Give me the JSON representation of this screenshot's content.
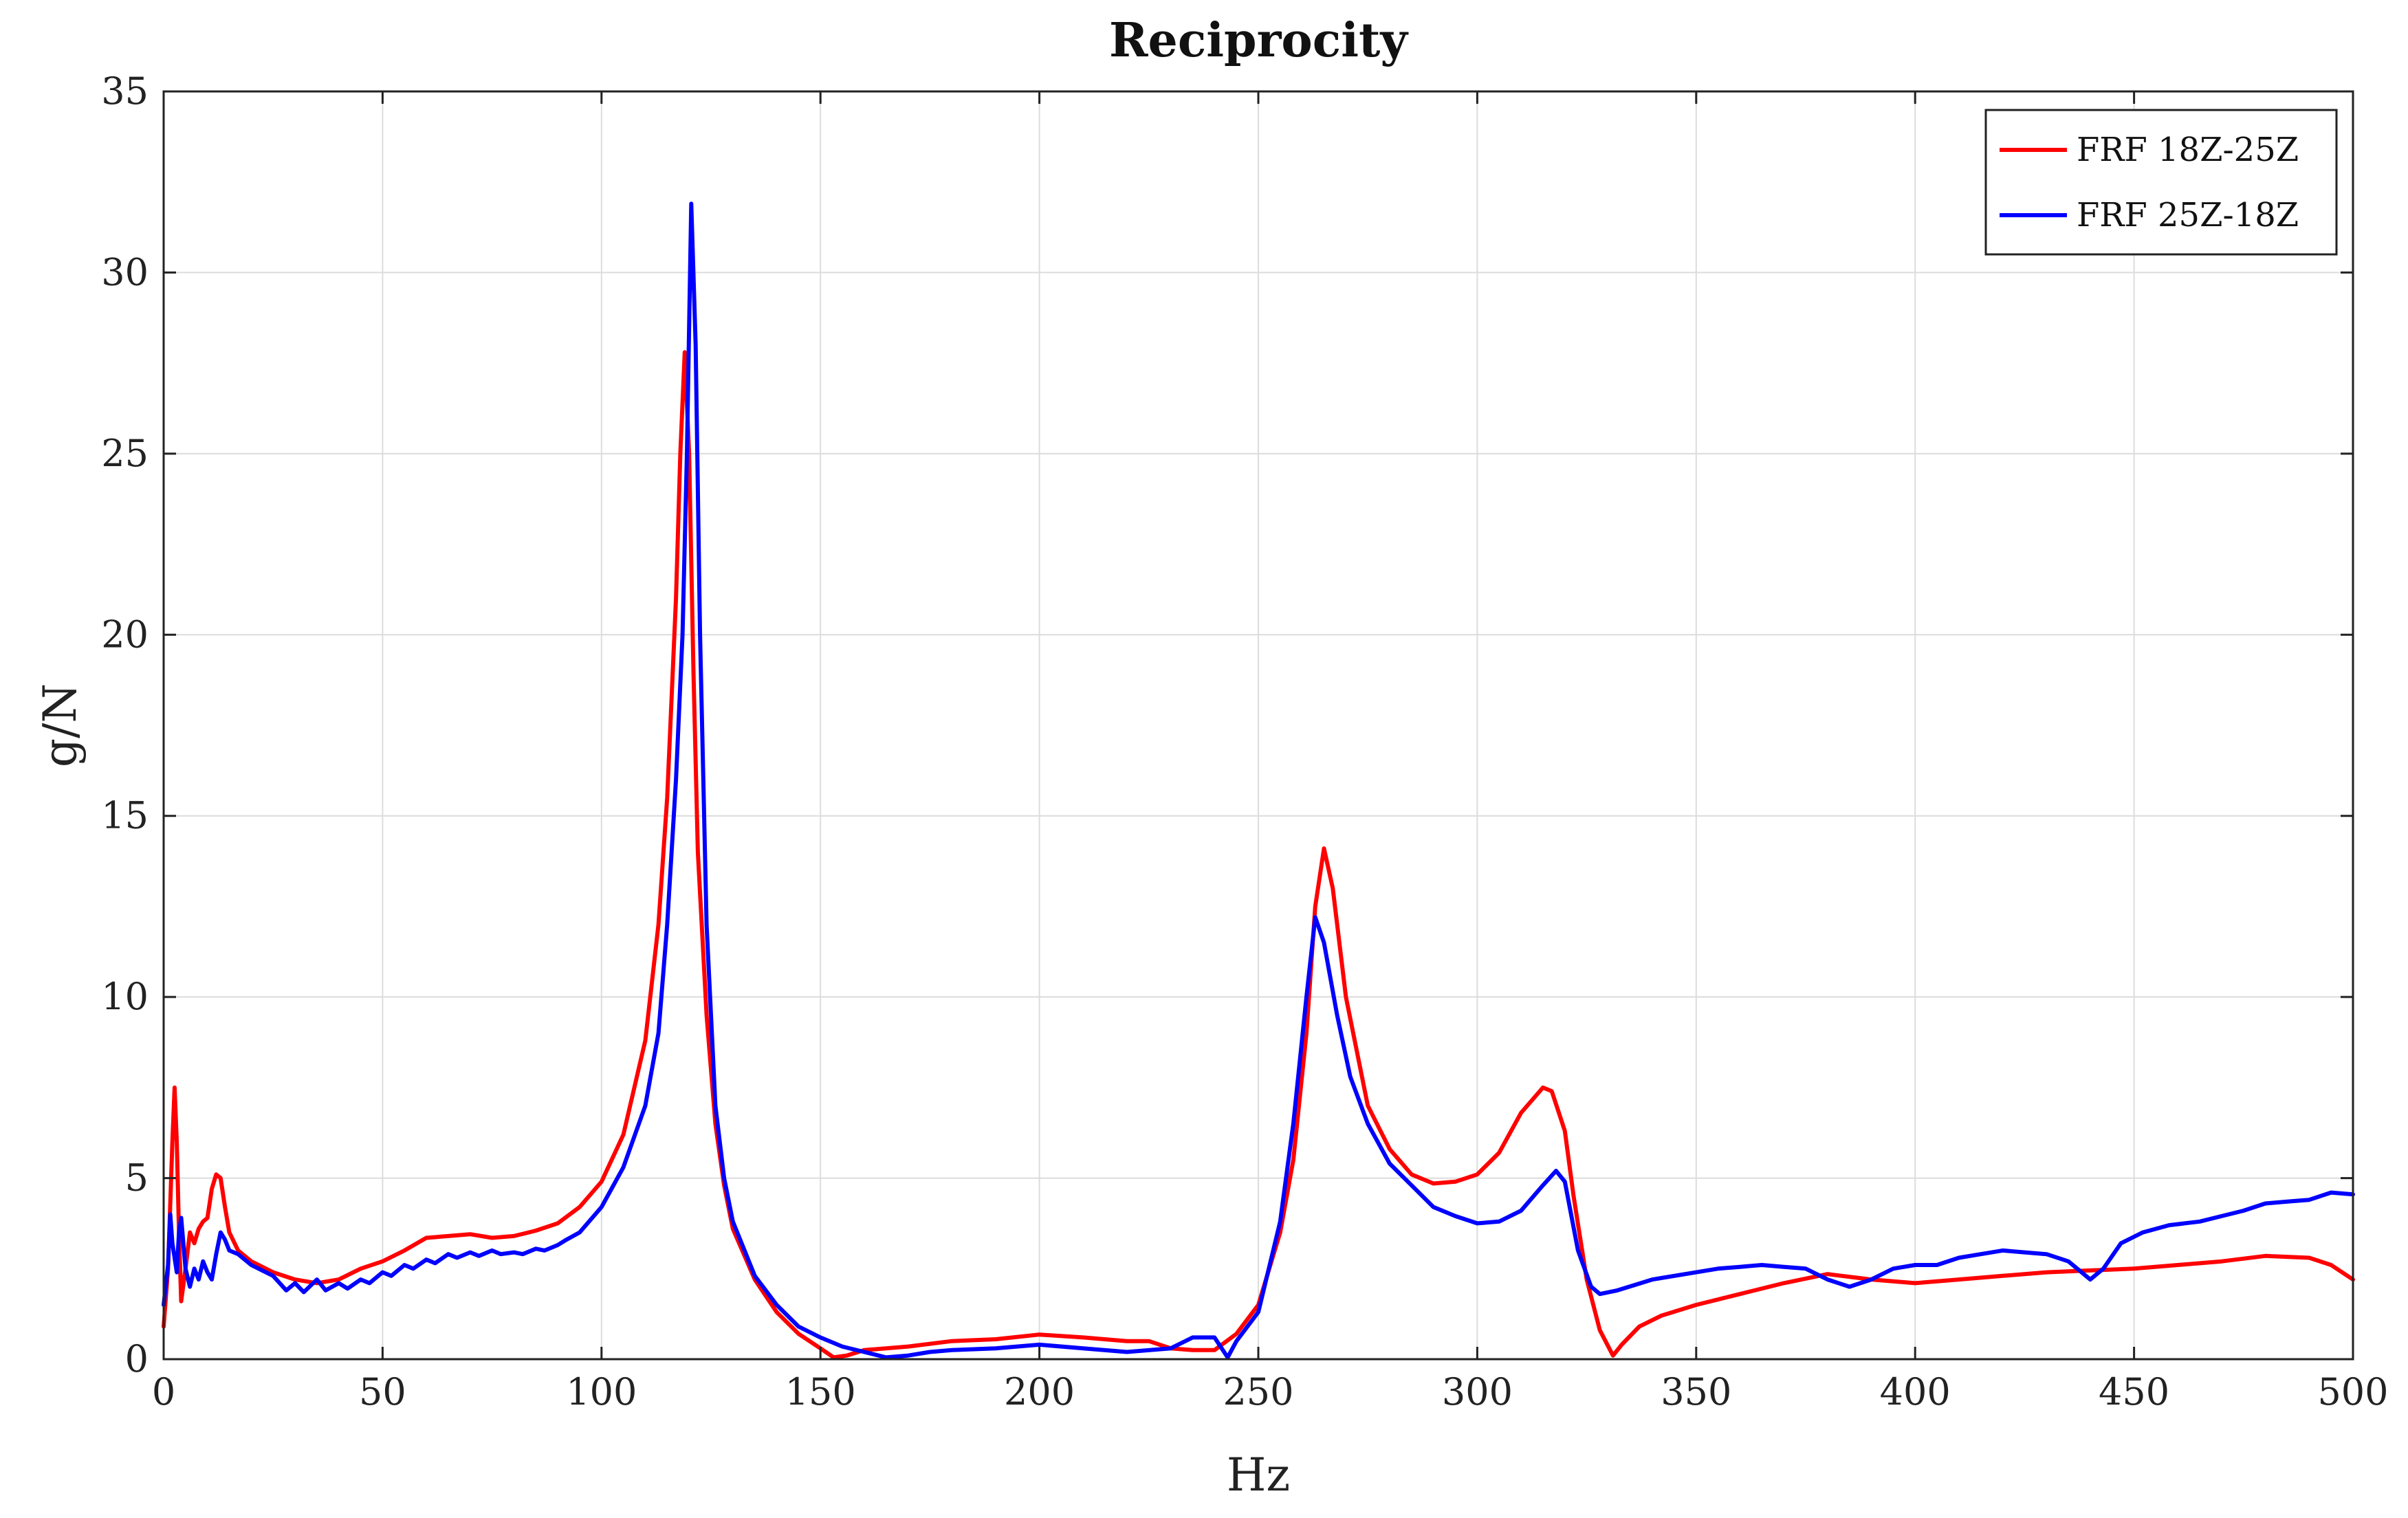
{
  "chart_data": {
    "type": "line",
    "title": "Reciprocity",
    "xlabel": "Hz",
    "ylabel": "g/N",
    "xlim": [
      0,
      500
    ],
    "ylim": [
      0,
      35
    ],
    "xticks": [
      0,
      50,
      100,
      150,
      200,
      250,
      300,
      350,
      400,
      450,
      500
    ],
    "yticks": [
      0,
      5,
      10,
      15,
      20,
      25,
      30,
      35
    ],
    "grid": true,
    "legend_position": "top-right",
    "series": [
      {
        "name": "FRF 18Z-25Z",
        "color": "#ff0000",
        "points": [
          [
            0,
            0.9
          ],
          [
            1,
            2.5
          ],
          [
            2,
            6.0
          ],
          [
            2.5,
            7.5
          ],
          [
            3,
            6.0
          ],
          [
            3.5,
            3.5
          ],
          [
            4,
            1.6
          ],
          [
            5,
            2.5
          ],
          [
            6,
            3.5
          ],
          [
            7,
            3.2
          ],
          [
            8,
            3.6
          ],
          [
            9,
            3.8
          ],
          [
            10,
            3.9
          ],
          [
            11,
            4.7
          ],
          [
            12,
            5.1
          ],
          [
            13,
            5.0
          ],
          [
            14,
            4.2
          ],
          [
            15,
            3.5
          ],
          [
            17,
            3.0
          ],
          [
            20,
            2.7
          ],
          [
            25,
            2.4
          ],
          [
            30,
            2.2
          ],
          [
            35,
            2.1
          ],
          [
            40,
            2.2
          ],
          [
            45,
            2.5
          ],
          [
            50,
            2.7
          ],
          [
            55,
            3.0
          ],
          [
            60,
            3.35
          ],
          [
            65,
            3.4
          ],
          [
            70,
            3.45
          ],
          [
            75,
            3.35
          ],
          [
            80,
            3.4
          ],
          [
            85,
            3.55
          ],
          [
            90,
            3.75
          ],
          [
            95,
            4.2
          ],
          [
            100,
            4.9
          ],
          [
            105,
            6.2
          ],
          [
            110,
            8.8
          ],
          [
            113,
            12.0
          ],
          [
            115,
            15.5
          ],
          [
            117,
            21.0
          ],
          [
            118,
            25.0
          ],
          [
            119,
            27.8
          ],
          [
            120,
            25.0
          ],
          [
            121,
            19.0
          ],
          [
            122,
            14.0
          ],
          [
            124,
            9.5
          ],
          [
            126,
            6.5
          ],
          [
            128,
            4.8
          ],
          [
            130,
            3.6
          ],
          [
            135,
            2.2
          ],
          [
            140,
            1.3
          ],
          [
            145,
            0.7
          ],
          [
            150,
            0.3
          ],
          [
            153,
            0.05
          ],
          [
            156,
            0.1
          ],
          [
            160,
            0.25
          ],
          [
            170,
            0.35
          ],
          [
            180,
            0.5
          ],
          [
            190,
            0.55
          ],
          [
            200,
            0.68
          ],
          [
            210,
            0.6
          ],
          [
            220,
            0.5
          ],
          [
            225,
            0.5
          ],
          [
            230,
            0.3
          ],
          [
            235,
            0.25
          ],
          [
            240,
            0.25
          ],
          [
            245,
            0.7
          ],
          [
            250,
            1.5
          ],
          [
            255,
            3.5
          ],
          [
            258,
            5.5
          ],
          [
            261,
            9.0
          ],
          [
            263,
            12.5
          ],
          [
            265,
            14.1
          ],
          [
            267,
            13.0
          ],
          [
            270,
            10.0
          ],
          [
            275,
            7.0
          ],
          [
            280,
            5.8
          ],
          [
            285,
            5.1
          ],
          [
            290,
            4.85
          ],
          [
            295,
            4.9
          ],
          [
            300,
            5.1
          ],
          [
            305,
            5.7
          ],
          [
            310,
            6.8
          ],
          [
            315,
            7.5
          ],
          [
            317,
            7.4
          ],
          [
            320,
            6.3
          ],
          [
            322,
            4.5
          ],
          [
            325,
            2.2
          ],
          [
            328,
            0.8
          ],
          [
            331,
            0.1
          ],
          [
            333,
            0.4
          ],
          [
            337,
            0.9
          ],
          [
            342,
            1.2
          ],
          [
            350,
            1.5
          ],
          [
            360,
            1.8
          ],
          [
            370,
            2.1
          ],
          [
            380,
            2.35
          ],
          [
            390,
            2.2
          ],
          [
            400,
            2.1
          ],
          [
            410,
            2.2
          ],
          [
            420,
            2.3
          ],
          [
            430,
            2.4
          ],
          [
            440,
            2.45
          ],
          [
            450,
            2.5
          ],
          [
            460,
            2.6
          ],
          [
            470,
            2.7
          ],
          [
            480,
            2.85
          ],
          [
            490,
            2.8
          ],
          [
            495,
            2.6
          ],
          [
            500,
            2.2
          ]
        ]
      },
      {
        "name": "FRF 25Z-18Z",
        "color": "#0000ff",
        "points": [
          [
            0,
            1.5
          ],
          [
            1,
            2.6
          ],
          [
            1.5,
            4.0
          ],
          [
            2,
            3.2
          ],
          [
            3,
            2.4
          ],
          [
            3.5,
            3.5
          ],
          [
            4,
            3.9
          ],
          [
            5,
            2.5
          ],
          [
            6,
            2.0
          ],
          [
            7,
            2.5
          ],
          [
            8,
            2.2
          ],
          [
            9,
            2.7
          ],
          [
            10,
            2.4
          ],
          [
            11,
            2.2
          ],
          [
            12,
            2.9
          ],
          [
            13,
            3.5
          ],
          [
            14,
            3.3
          ],
          [
            15,
            3.0
          ],
          [
            17,
            2.9
          ],
          [
            20,
            2.6
          ],
          [
            25,
            2.3
          ],
          [
            28,
            1.9
          ],
          [
            30,
            2.1
          ],
          [
            32,
            1.85
          ],
          [
            35,
            2.2
          ],
          [
            37,
            1.9
          ],
          [
            40,
            2.1
          ],
          [
            42,
            1.95
          ],
          [
            45,
            2.2
          ],
          [
            47,
            2.1
          ],
          [
            50,
            2.4
          ],
          [
            52,
            2.3
          ],
          [
            55,
            2.6
          ],
          [
            57,
            2.5
          ],
          [
            60,
            2.75
          ],
          [
            62,
            2.65
          ],
          [
            65,
            2.9
          ],
          [
            67,
            2.8
          ],
          [
            70,
            2.95
          ],
          [
            72,
            2.85
          ],
          [
            75,
            3.0
          ],
          [
            77,
            2.9
          ],
          [
            80,
            2.95
          ],
          [
            82,
            2.9
          ],
          [
            85,
            3.05
          ],
          [
            87,
            3.0
          ],
          [
            90,
            3.15
          ],
          [
            92,
            3.3
          ],
          [
            95,
            3.5
          ],
          [
            100,
            4.2
          ],
          [
            105,
            5.3
          ],
          [
            110,
            7.0
          ],
          [
            113,
            9.0
          ],
          [
            115,
            12.0
          ],
          [
            117,
            16.0
          ],
          [
            118.5,
            20.0
          ],
          [
            119.5,
            25.0
          ],
          [
            120.5,
            31.9
          ],
          [
            121.5,
            28.0
          ],
          [
            122.5,
            20.0
          ],
          [
            124,
            12.0
          ],
          [
            126,
            7.0
          ],
          [
            128,
            5.0
          ],
          [
            130,
            3.8
          ],
          [
            135,
            2.3
          ],
          [
            140,
            1.5
          ],
          [
            145,
            0.9
          ],
          [
            150,
            0.6
          ],
          [
            155,
            0.35
          ],
          [
            160,
            0.2
          ],
          [
            165,
            0.05
          ],
          [
            170,
            0.1
          ],
          [
            175,
            0.2
          ],
          [
            180,
            0.25
          ],
          [
            190,
            0.3
          ],
          [
            200,
            0.4
          ],
          [
            210,
            0.3
          ],
          [
            220,
            0.2
          ],
          [
            230,
            0.3
          ],
          [
            235,
            0.6
          ],
          [
            240,
            0.6
          ],
          [
            243,
            0.05
          ],
          [
            245,
            0.5
          ],
          [
            250,
            1.3
          ],
          [
            255,
            3.8
          ],
          [
            258,
            6.5
          ],
          [
            261,
            10.0
          ],
          [
            263,
            12.2
          ],
          [
            265,
            11.5
          ],
          [
            268,
            9.5
          ],
          [
            271,
            7.8
          ],
          [
            275,
            6.5
          ],
          [
            280,
            5.4
          ],
          [
            285,
            4.8
          ],
          [
            290,
            4.2
          ],
          [
            295,
            3.95
          ],
          [
            300,
            3.75
          ],
          [
            305,
            3.8
          ],
          [
            310,
            4.1
          ],
          [
            315,
            4.8
          ],
          [
            318,
            5.2
          ],
          [
            320,
            4.9
          ],
          [
            323,
            3.0
          ],
          [
            326,
            2.0
          ],
          [
            328,
            1.8
          ],
          [
            332,
            1.9
          ],
          [
            340,
            2.2
          ],
          [
            350,
            2.4
          ],
          [
            355,
            2.5
          ],
          [
            360,
            2.55
          ],
          [
            365,
            2.6
          ],
          [
            370,
            2.55
          ],
          [
            375,
            2.5
          ],
          [
            380,
            2.2
          ],
          [
            385,
            2.0
          ],
          [
            390,
            2.2
          ],
          [
            395,
            2.5
          ],
          [
            400,
            2.6
          ],
          [
            405,
            2.6
          ],
          [
            410,
            2.8
          ],
          [
            415,
            2.9
          ],
          [
            420,
            3.0
          ],
          [
            425,
            2.95
          ],
          [
            430,
            2.9
          ],
          [
            435,
            2.7
          ],
          [
            440,
            2.2
          ],
          [
            443,
            2.5
          ],
          [
            447,
            3.2
          ],
          [
            452,
            3.5
          ],
          [
            458,
            3.7
          ],
          [
            465,
            3.8
          ],
          [
            470,
            3.95
          ],
          [
            475,
            4.1
          ],
          [
            480,
            4.3
          ],
          [
            485,
            4.35
          ],
          [
            490,
            4.4
          ],
          [
            495,
            4.6
          ],
          [
            500,
            4.55
          ]
        ]
      }
    ]
  }
}
